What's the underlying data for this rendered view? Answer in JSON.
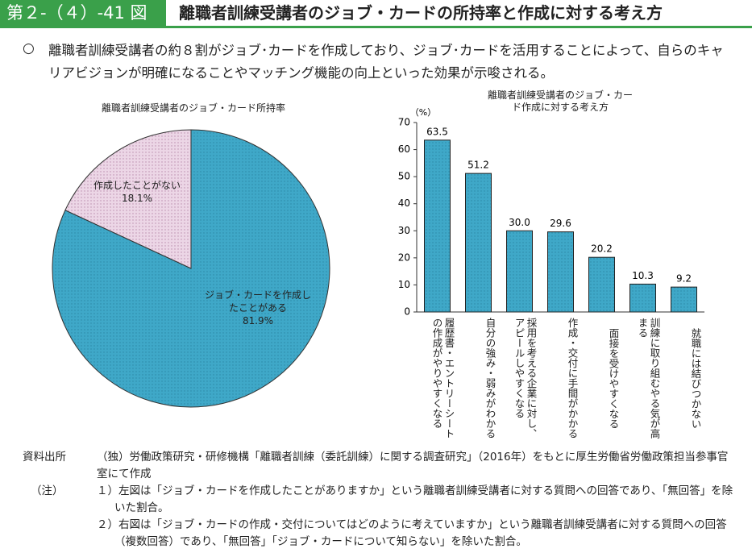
{
  "header": {
    "label": "第２-（４）-41 図",
    "title": "離職者訓練受講者のジョブ・カードの所持率と作成に対する考え方"
  },
  "summary": {
    "marker": "○",
    "text": "離職者訓練受講者の約８割がジョブ･カードを作成しており、ジョブ･カードを活用することによって、自らのキャリアビジョンが明確になることやマッチング機能の向上といった効果が示唆される。"
  },
  "chart_data": [
    {
      "type": "pie",
      "title": "離職者訓練受講者のジョブ・カード所持率",
      "categories": [
        "ジョブ・カードを作成したことがある",
        "作成したことがない"
      ],
      "values": [
        81.9,
        18.1
      ],
      "value_labels": [
        "81.9%",
        "18.1%"
      ],
      "colors": [
        "#3fa8c8",
        "#ecd6e6"
      ]
    },
    {
      "type": "bar",
      "title": "離職者訓練受講者のジョブ・カード作成に対する考え方",
      "y_unit": "（%）",
      "categories": [
        "履歴書・エントリーシートの作成がやりやすくなる",
        "自分の強み・弱みがわかる",
        "採用を考える企業に対し、アピールしやすくなる",
        "作成・交付に手間がかかる",
        "面接を受けやすくなる",
        "訓練に取り組むやる気が高まる",
        "就職には結びつかない"
      ],
      "values": [
        63.5,
        51.2,
        30.0,
        29.6,
        20.2,
        10.3,
        9.2
      ],
      "value_labels": [
        "63.5",
        "51.2",
        "30.0",
        "29.6",
        "20.2",
        "10.3",
        "9.2"
      ],
      "color": "#3fa8c8",
      "ylim": [
        0,
        70
      ],
      "yticks": [
        0,
        10,
        20,
        30,
        40,
        50,
        60,
        70
      ]
    }
  ],
  "source": {
    "label": "資料出所",
    "text": "（独）労働政策研究・研修機構「離職者訓練（委託訓練）に関する調査研究」（2016年）をもとに厚生労働省労働政策担当参事官室にて作成"
  },
  "notes": {
    "label": "（注）",
    "items": [
      "１）左図は「ジョブ・カードを作成したことがありますか」という離職者訓練受講者に対する質問への回答であり、「無回答」を除いた割合。",
      "２）右図は「ジョブ・カードの作成・交付についてはどのように考えていますか」という離職者訓練受講者に対する質問への回答（複数回答）であり、「無回答」「ジョブ・カードについて知らない」を除いた割合。"
    ]
  }
}
